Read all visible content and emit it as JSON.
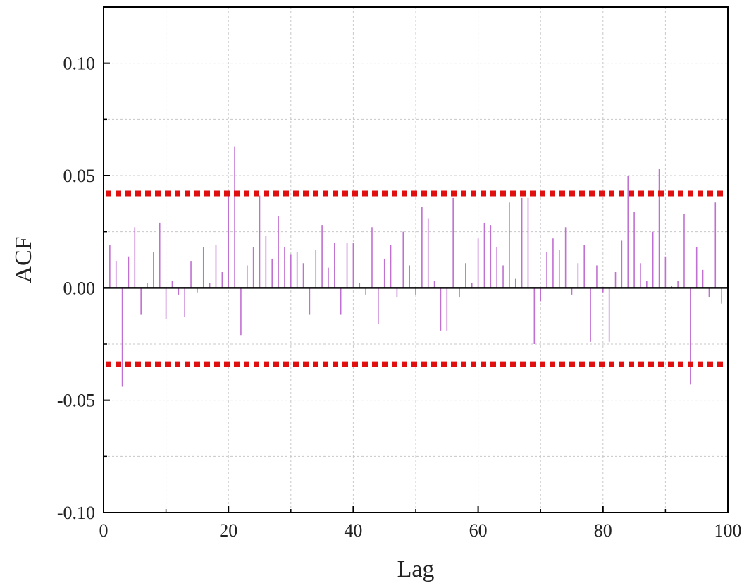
{
  "chart_data": {
    "type": "bar",
    "xlabel": "Lag",
    "ylabel": "ACF",
    "xlim": [
      0,
      100
    ],
    "ylim": [
      -0.1,
      0.125
    ],
    "x_ticks": [
      0,
      20,
      40,
      60,
      80,
      100
    ],
    "x_tick_labels": [
      "0",
      "20",
      "40",
      "60",
      "80",
      "100"
    ],
    "y_ticks": [
      -0.1,
      -0.05,
      0.0,
      0.05,
      0.1
    ],
    "y_tick_labels": [
      "-0.10",
      "-0.05",
      "0.00",
      "0.05",
      "0.10"
    ],
    "grid": true,
    "confidence_bounds": {
      "upper": 0.042,
      "lower": -0.034,
      "color": "#e01010"
    },
    "bar_color": "#c070d0",
    "zero_line_color": "#000000",
    "lags": [
      1,
      2,
      3,
      4,
      5,
      6,
      7,
      8,
      9,
      10,
      11,
      12,
      13,
      14,
      15,
      16,
      17,
      18,
      19,
      20,
      21,
      22,
      23,
      24,
      25,
      26,
      27,
      28,
      29,
      30,
      31,
      32,
      33,
      34,
      35,
      36,
      37,
      38,
      39,
      40,
      41,
      42,
      43,
      44,
      45,
      46,
      47,
      48,
      49,
      50,
      51,
      52,
      53,
      54,
      55,
      56,
      57,
      58,
      59,
      60,
      61,
      62,
      63,
      64,
      65,
      66,
      67,
      68,
      69,
      70,
      71,
      72,
      73,
      74,
      75,
      76,
      77,
      78,
      79,
      80,
      81,
      82,
      83,
      84,
      85,
      86,
      87,
      88,
      89,
      90,
      91,
      92,
      93,
      94,
      95,
      96,
      97,
      98,
      99
    ],
    "values": [
      0.019,
      0.012,
      -0.044,
      0.014,
      0.027,
      -0.012,
      0.002,
      0.016,
      0.029,
      -0.014,
      0.003,
      -0.003,
      -0.013,
      0.012,
      -0.002,
      0.018,
      0.002,
      0.019,
      0.007,
      0.041,
      0.063,
      -0.021,
      0.01,
      0.018,
      0.041,
      0.023,
      0.013,
      0.032,
      0.018,
      0.015,
      0.016,
      0.011,
      -0.012,
      0.017,
      0.028,
      0.009,
      0.02,
      -0.012,
      0.02,
      0.02,
      0.002,
      -0.003,
      0.027,
      -0.016,
      0.013,
      0.019,
      -0.004,
      0.025,
      0.01,
      -0.003,
      0.036,
      0.031,
      0.003,
      -0.019,
      -0.019,
      0.04,
      -0.004,
      0.011,
      0.002,
      0.022,
      0.029,
      0.028,
      0.018,
      0.01,
      0.038,
      0.004,
      0.04,
      0.04,
      -0.025,
      -0.006,
      0.016,
      0.022,
      0.017,
      0.027,
      -0.003,
      0.011,
      0.019,
      -0.024,
      0.01,
      -0.002,
      -0.024,
      0.007,
      0.021,
      0.05,
      0.034,
      0.011,
      0.003,
      0.025,
      0.053,
      0.014,
      0.001,
      0.003,
      0.033,
      -0.043,
      0.018,
      0.008,
      -0.004,
      0.038,
      -0.007
    ]
  }
}
